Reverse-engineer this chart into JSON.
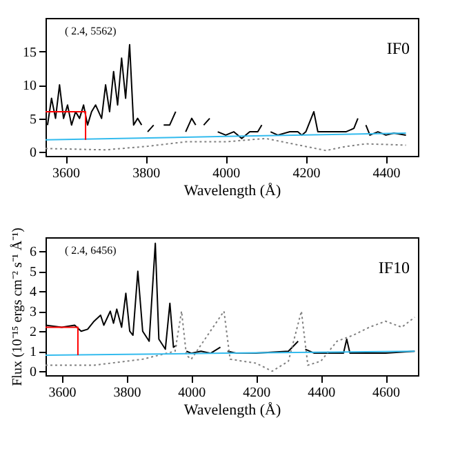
{
  "chart_data": [
    {
      "type": "line",
      "xlabel": "Wavelength (Å)",
      "xlim": [
        3550,
        4480
      ],
      "ylim": [
        -0.6,
        20
      ],
      "xticks": [
        3600,
        3800,
        4000,
        4200,
        4400
      ],
      "yticks": [
        0,
        5,
        10,
        15
      ],
      "grid": false,
      "annotations": [
        "( 2.4, 5562)",
        "IF0"
      ],
      "series": [
        {
          "color": "#000000",
          "line_style": "solid",
          "x": [
            3555,
            3565,
            3575,
            3585,
            3595,
            3605,
            3615,
            3625,
            3635,
            3645,
            3655,
            3665,
            3675,
            3690,
            3700,
            3710,
            3720,
            3730,
            3740,
            3750,
            3760,
            3770,
            3780,
            3790,
            3797,
            3805,
            3820,
            3835,
            3845,
            3860,
            3875,
            3889,
            3900,
            3915,
            3925,
            3934,
            3945,
            3960,
            3970,
            3980,
            4000,
            4020,
            4040,
            4060,
            4080,
            4090,
            4101,
            4112,
            4130,
            4160,
            4180,
            4190,
            4200,
            4220,
            4230,
            4250,
            4280,
            4300,
            4320,
            4330,
            4340,
            4350,
            4360,
            4380,
            4400,
            4420,
            4450
          ],
          "values": [
            4,
            8,
            5,
            10,
            5,
            7,
            4,
            6,
            5,
            7,
            4,
            6,
            7,
            5,
            10,
            6,
            12,
            7,
            14,
            8,
            16,
            4,
            5,
            4,
            null,
            3,
            4,
            null,
            4,
            4,
            6,
            null,
            3,
            5,
            4,
            null,
            4,
            5,
            null,
            3,
            2.5,
            3,
            2,
            3,
            3,
            4,
            null,
            3,
            2.5,
            3,
            3,
            2.5,
            3,
            6,
            3,
            3,
            3,
            3,
            3.5,
            5,
            null,
            4,
            2.5,
            3,
            2.5,
            2.8,
            2.5
          ]
        },
        {
          "color": "#808080",
          "line_style": "dotted",
          "x": [
            3550,
            3700,
            3800,
            3900,
            4000,
            4100,
            4200,
            4250,
            4300,
            4350,
            4450
          ],
          "values": [
            0.5,
            0.3,
            0.8,
            1.5,
            1.5,
            2,
            0.8,
            0.2,
            0.8,
            1.2,
            1.0
          ]
        },
        {
          "color": "#33bbee",
          "line_style": "solid",
          "x": [
            3550,
            4000,
            4450
          ],
          "values": [
            1.8,
            2.3,
            2.8
          ]
        },
        {
          "color": "#ff0000",
          "line_style": "solid",
          "x": [
            3550,
            3650,
            3650
          ],
          "values": [
            6,
            6,
            1.8
          ]
        }
      ]
    },
    {
      "type": "line",
      "xlabel": "Wavelength (Å)",
      "ylabel": "Flux (10⁻¹⁵ ergs cm⁻² s⁻¹ Å⁻¹)",
      "xlim": [
        3550,
        4700
      ],
      "ylim": [
        -0.2,
        6.7
      ],
      "xticks": [
        3600,
        3800,
        4000,
        4200,
        4400,
        4600
      ],
      "yticks": [
        0,
        1,
        2,
        3,
        4,
        5,
        6
      ],
      "grid": false,
      "annotations": [
        "( 2.4, 6456)",
        "IF10"
      ],
      "series": [
        {
          "color": "#000000",
          "line_style": "solid",
          "x": [
            3550,
            3600,
            3640,
            3660,
            3680,
            3700,
            3720,
            3730,
            3750,
            3760,
            3770,
            3785,
            3798,
            3810,
            3820,
            3835,
            3850,
            3870,
            3889,
            3900,
            3920,
            3934,
            3945,
            3955,
            3970,
            3985,
            4000,
            4030,
            4060,
            4090,
            4101,
            4112,
            4140,
            4200,
            4300,
            4330,
            4340,
            4352,
            4380,
            4470,
            4480,
            4490,
            4550,
            4600,
            4690
          ],
          "values": [
            2.3,
            2.2,
            2.3,
            2.0,
            2.1,
            2.5,
            2.8,
            2.3,
            3,
            2.4,
            3.1,
            2.2,
            3.9,
            2.0,
            1.8,
            5.0,
            2.0,
            1.5,
            6.4,
            1.6,
            1.1,
            3.4,
            1.2,
            1.3,
            null,
            1.0,
            0.9,
            1.0,
            0.9,
            1.2,
            null,
            1.0,
            0.9,
            0.9,
            1.0,
            1.5,
            null,
            1.1,
            0.9,
            0.9,
            1.6,
            0.9,
            0.9,
            0.9,
            1.0
          ]
        },
        {
          "color": "#808080",
          "line_style": "dotted",
          "x": [
            3550,
            3700,
            3850,
            3950,
            3970,
            3985,
            4000,
            4101,
            4120,
            4200,
            4250,
            4300,
            4340,
            4360,
            4400,
            4450,
            4500,
            4550,
            4600,
            4650,
            4690
          ],
          "values": [
            0.3,
            0.3,
            0.6,
            1.0,
            3,
            0.8,
            0.6,
            3,
            0.6,
            0.4,
            0,
            0.5,
            3,
            0.3,
            0.5,
            1.5,
            1.8,
            2.2,
            2.5,
            2.2,
            2.7
          ]
        },
        {
          "color": "#33bbee",
          "line_style": "solid",
          "x": [
            3550,
            4100,
            4690
          ],
          "values": [
            0.8,
            0.9,
            1.0
          ]
        },
        {
          "color": "#ff0000",
          "line_style": "solid",
          "x": [
            3550,
            3650,
            3650
          ],
          "values": [
            2.2,
            2.2,
            0.8
          ]
        }
      ]
    }
  ]
}
